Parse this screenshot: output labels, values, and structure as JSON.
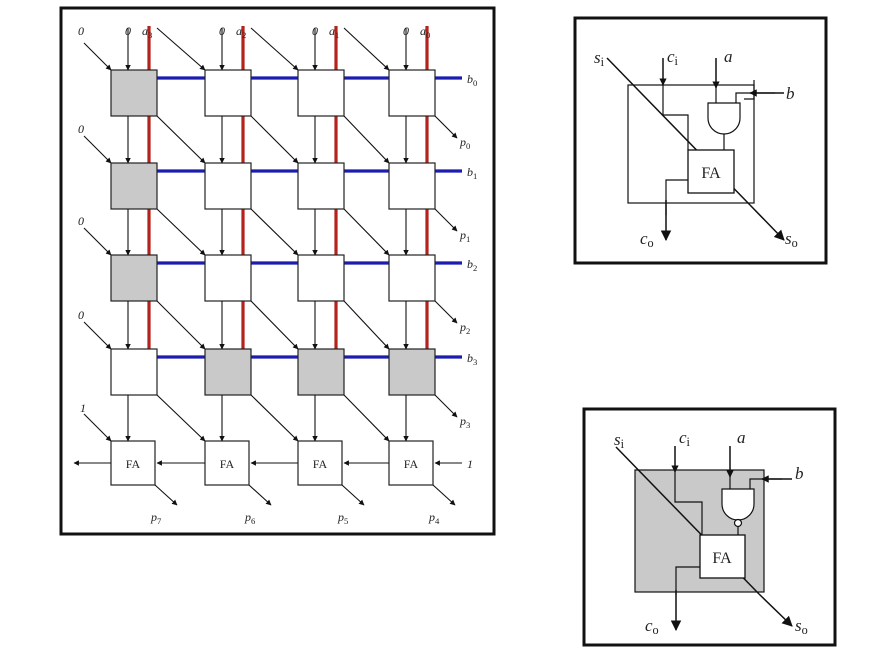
{
  "array": {
    "a_inputs": [
      "a3",
      "a2",
      "a1",
      "a0"
    ],
    "b_inputs": [
      "b0",
      "b1",
      "b2",
      "b3"
    ],
    "products": [
      "p0",
      "p1",
      "p2",
      "p3",
      "p4",
      "p5",
      "p6",
      "p7"
    ],
    "zero": "0",
    "one": "1",
    "fa_label": "FA",
    "shaded_cells": [
      [
        0,
        0
      ],
      [
        1,
        0
      ],
      [
        2,
        0
      ],
      [
        3,
        1
      ],
      [
        3,
        2
      ],
      [
        3,
        3
      ]
    ],
    "colors": {
      "a_line": "#b3221b",
      "b_line": "#1c1cb0",
      "shade": "#c9c9c9"
    }
  },
  "cell_detail_plain": {
    "s_in": "si",
    "c_in": "ci",
    "a": "a",
    "b": "b",
    "c_out": "co",
    "s_out": "so",
    "fa": "FA"
  },
  "cell_detail_shaded": {
    "s_in": "si",
    "c_in": "ci",
    "a": "a",
    "b": "b",
    "c_out": "co",
    "s_out": "so",
    "fa": "FA"
  }
}
